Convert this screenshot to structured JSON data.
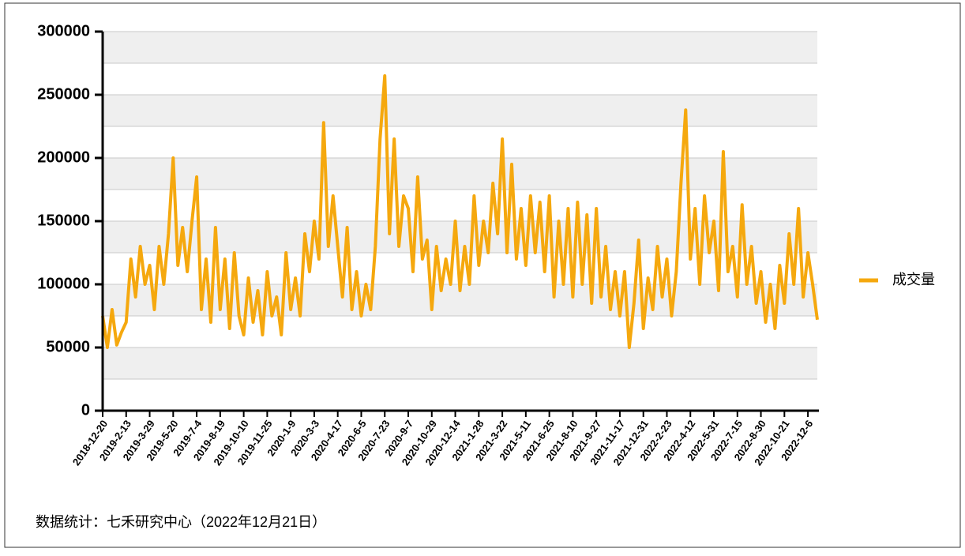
{
  "chart_data": {
    "type": "line",
    "source": "数据统计：七禾研究中心（2022年12月21日）",
    "categories": [
      "2018-12-20",
      null,
      null,
      null,
      null,
      "2019-2-13",
      null,
      null,
      null,
      null,
      "2019-3-29",
      null,
      null,
      null,
      null,
      "2019-5-20",
      null,
      null,
      null,
      null,
      "2019-7-4",
      null,
      null,
      null,
      null,
      "2019-8-19",
      null,
      null,
      null,
      null,
      "2019-10-10",
      null,
      null,
      null,
      null,
      "2019-11-25",
      null,
      null,
      null,
      null,
      "2020-1-9",
      null,
      null,
      null,
      null,
      "2020-3-3",
      null,
      null,
      null,
      null,
      "2020-4-17",
      null,
      null,
      null,
      null,
      "2020-6-5",
      null,
      null,
      null,
      null,
      "2020-7-23",
      null,
      null,
      null,
      null,
      "2020-9-7",
      null,
      null,
      null,
      null,
      "2020-10-29",
      null,
      null,
      null,
      null,
      "2020-12-14",
      null,
      null,
      null,
      null,
      "2021-1-28",
      null,
      null,
      null,
      null,
      "2021-3-22",
      null,
      null,
      null,
      null,
      "2021-5-11",
      null,
      null,
      null,
      null,
      "2021-6-25",
      null,
      null,
      null,
      null,
      "2021-8-10",
      null,
      null,
      null,
      null,
      "2021-9-27",
      null,
      null,
      null,
      null,
      "2021-11-17",
      null,
      null,
      null,
      null,
      "2021-12-31",
      null,
      null,
      null,
      null,
      "2022-2-23",
      null,
      null,
      null,
      null,
      "2022-4-12",
      null,
      null,
      null,
      null,
      "2022-5-31",
      null,
      null,
      null,
      null,
      "2022-7-15",
      null,
      null,
      null,
      null,
      "2022-8-30",
      null,
      null,
      null,
      null,
      "2022-10-21",
      null,
      null,
      null,
      null,
      "2022-12-6",
      null,
      null
    ],
    "series": [
      {
        "name": "成交量",
        "color": "#f5a80e",
        "values": [
          75000,
          50000,
          80000,
          52000,
          62000,
          70000,
          120000,
          90000,
          130000,
          100000,
          115000,
          80000,
          130000,
          100000,
          140000,
          200000,
          115000,
          145000,
          110000,
          150000,
          185000,
          80000,
          120000,
          70000,
          145000,
          80000,
          120000,
          65000,
          125000,
          75000,
          60000,
          105000,
          70000,
          95000,
          60000,
          110000,
          75000,
          90000,
          60000,
          125000,
          80000,
          105000,
          75000,
          140000,
          110000,
          150000,
          120000,
          228000,
          130000,
          170000,
          130000,
          90000,
          145000,
          80000,
          110000,
          75000,
          100000,
          80000,
          130000,
          215000,
          265000,
          140000,
          215000,
          130000,
          170000,
          160000,
          110000,
          185000,
          120000,
          135000,
          80000,
          130000,
          95000,
          120000,
          100000,
          150000,
          95000,
          130000,
          100000,
          170000,
          115000,
          150000,
          125000,
          180000,
          140000,
          215000,
          125000,
          195000,
          120000,
          160000,
          115000,
          170000,
          125000,
          165000,
          110000,
          170000,
          90000,
          150000,
          100000,
          160000,
          90000,
          165000,
          100000,
          155000,
          85000,
          160000,
          90000,
          130000,
          80000,
          110000,
          75000,
          110000,
          50000,
          85000,
          135000,
          65000,
          105000,
          80000,
          130000,
          90000,
          120000,
          75000,
          110000,
          180000,
          238000,
          120000,
          160000,
          100000,
          170000,
          125000,
          150000,
          95000,
          205000,
          110000,
          130000,
          90000,
          163000,
          100000,
          130000,
          85000,
          110000,
          70000,
          100000,
          65000,
          115000,
          85000,
          140000,
          100000,
          160000,
          90000,
          125000,
          100000,
          72000
        ]
      }
    ],
    "ylim": [
      0,
      300000
    ],
    "yticks": [
      0,
      50000,
      100000,
      150000,
      200000,
      250000,
      300000
    ],
    "grid": true,
    "legend": "right"
  }
}
